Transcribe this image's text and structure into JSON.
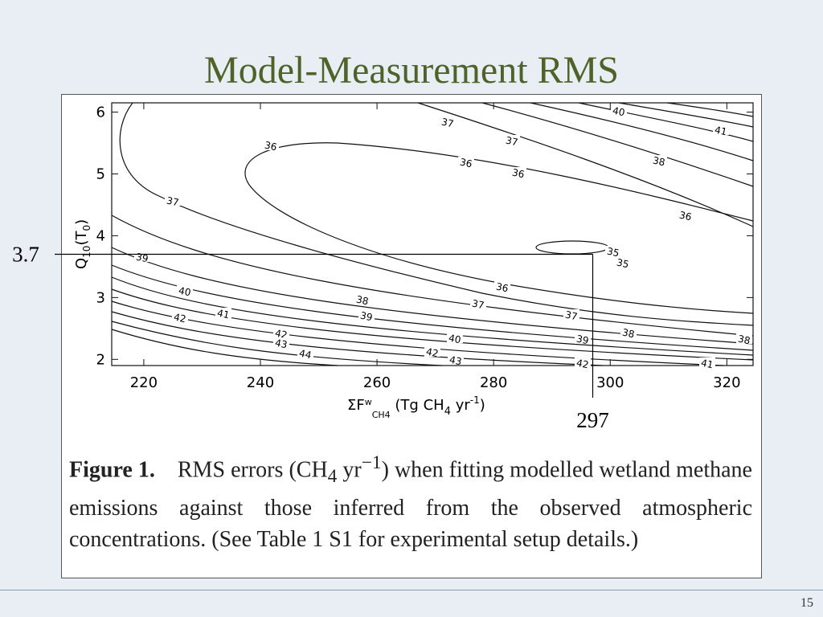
{
  "title": "Model-Measurement RMS",
  "chart_data": {
    "type": "contour",
    "x_label_parts": [
      "ΣF",
      "w",
      "CH4",
      " (Tg CH",
      "4",
      " yr",
      "-1",
      ")"
    ],
    "y_label_parts": [
      "Q",
      "10",
      "(T",
      "0",
      ")"
    ],
    "xlim": [
      214.5,
      324.5
    ],
    "xticks": [
      220,
      240,
      260,
      280,
      300,
      320
    ],
    "ylim": [
      1.9,
      6.15
    ],
    "yticks": [
      2,
      3,
      4,
      5,
      6
    ],
    "contour_labels": [
      40,
      37,
      41,
      36,
      37,
      36,
      36,
      38,
      37,
      36,
      35,
      35,
      39,
      36,
      40,
      38,
      37,
      39,
      41,
      42,
      37,
      38,
      39,
      40,
      42,
      43,
      38,
      44,
      42,
      43,
      42,
      41
    ],
    "reference_lines": [
      {
        "axis": "y",
        "value": 3.7
      },
      {
        "axis": "x",
        "value": 297
      }
    ]
  },
  "caption": {
    "label": "Figure 1.",
    "parts": [
      "RMS errors (CH",
      "4",
      " yr",
      "−1",
      ") when fitting modelled wetland methane emissions against those inferred from the observed atmospheric concentrations. (See Table 1 S1 for experimental setup details.)"
    ]
  },
  "slide_number": 15
}
